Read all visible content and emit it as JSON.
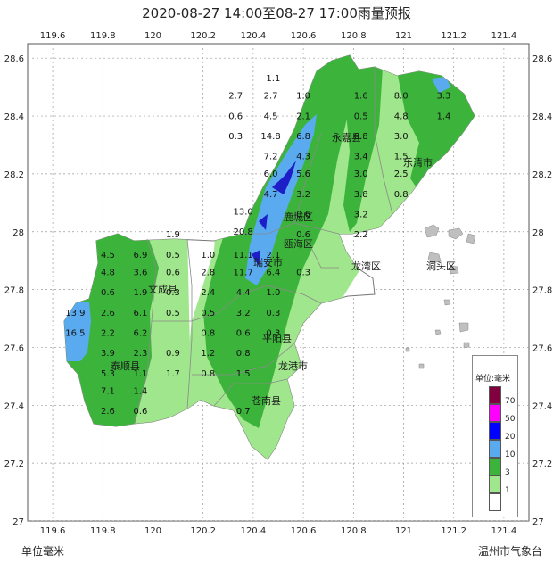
{
  "title": "2020-08-27 14:00至08-27 17:00雨量预报",
  "footer": {
    "left": "单位毫米",
    "right": "温州市气象台"
  },
  "lon_ticks": [
    "119.6",
    "119.8",
    "120",
    "120.2",
    "120.4",
    "120.6",
    "120.8",
    "121",
    "121.2",
    "121.4"
  ],
  "lat_ticks": [
    "28.6",
    "28.4",
    "28.2",
    "28",
    "27.8",
    "27.6",
    "27.4",
    "27.2",
    "27"
  ],
  "legend": {
    "title": "单位:毫米",
    "items": [
      {
        "label": "70",
        "color": "#800040"
      },
      {
        "label": "50",
        "color": "#ff00ff"
      },
      {
        "label": "20",
        "color": "#0000ff"
      },
      {
        "label": "10",
        "color": "#5aaaf0"
      },
      {
        "label": "3",
        "color": "#3cb43c"
      },
      {
        "label": "1",
        "color": "#a0e68c"
      },
      {
        "label": "",
        "color": "#ffffff"
      }
    ]
  },
  "places": [
    "永嘉县",
    "乐清市",
    "鹿城区",
    "瓯海区",
    "龙湾区",
    "洞头区",
    "文成县",
    "瑞安市",
    "平阳县",
    "龙港市",
    "苍南县",
    "泰顺县"
  ],
  "station_values": [
    {
      "lon": 120.48,
      "lat": 28.52,
      "v": "1.1"
    },
    {
      "lon": 120.33,
      "lat": 28.46,
      "v": "2.7"
    },
    {
      "lon": 120.47,
      "lat": 28.46,
      "v": "2.7"
    },
    {
      "lon": 120.6,
      "lat": 28.46,
      "v": "1.0"
    },
    {
      "lon": 120.83,
      "lat": 28.46,
      "v": "1.6"
    },
    {
      "lon": 120.99,
      "lat": 28.46,
      "v": "8.0"
    },
    {
      "lon": 121.16,
      "lat": 28.46,
      "v": "3.3"
    },
    {
      "lon": 120.33,
      "lat": 28.39,
      "v": "0.6"
    },
    {
      "lon": 120.47,
      "lat": 28.39,
      "v": "4.5"
    },
    {
      "lon": 120.6,
      "lat": 28.39,
      "v": "2.1"
    },
    {
      "lon": 120.83,
      "lat": 28.39,
      "v": "0.5"
    },
    {
      "lon": 120.99,
      "lat": 28.39,
      "v": "4.8"
    },
    {
      "lon": 121.16,
      "lat": 28.39,
      "v": "1.4"
    },
    {
      "lon": 120.33,
      "lat": 28.32,
      "v": "0.3"
    },
    {
      "lon": 120.47,
      "lat": 28.32,
      "v": "14.8"
    },
    {
      "lon": 120.6,
      "lat": 28.32,
      "v": "6.8"
    },
    {
      "lon": 120.83,
      "lat": 28.32,
      "v": "0.8"
    },
    {
      "lon": 120.99,
      "lat": 28.32,
      "v": "3.0"
    },
    {
      "lon": 120.47,
      "lat": 28.25,
      "v": "7.2"
    },
    {
      "lon": 120.6,
      "lat": 28.25,
      "v": "4.3"
    },
    {
      "lon": 120.83,
      "lat": 28.25,
      "v": "3.4"
    },
    {
      "lon": 120.99,
      "lat": 28.25,
      "v": "1.5"
    },
    {
      "lon": 120.47,
      "lat": 28.19,
      "v": "6.0"
    },
    {
      "lon": 120.6,
      "lat": 28.19,
      "v": "5.6"
    },
    {
      "lon": 120.83,
      "lat": 28.19,
      "v": "3.0"
    },
    {
      "lon": 120.99,
      "lat": 28.19,
      "v": "2.5"
    },
    {
      "lon": 120.47,
      "lat": 28.12,
      "v": "4.7"
    },
    {
      "lon": 120.6,
      "lat": 28.12,
      "v": "3.2"
    },
    {
      "lon": 120.83,
      "lat": 28.12,
      "v": "3.8"
    },
    {
      "lon": 120.99,
      "lat": 28.12,
      "v": "0.8"
    },
    {
      "lon": 120.36,
      "lat": 28.06,
      "v": "13.0"
    },
    {
      "lon": 120.6,
      "lat": 28.05,
      "v": "0.6"
    },
    {
      "lon": 120.83,
      "lat": 28.05,
      "v": "3.2"
    },
    {
      "lon": 120.36,
      "lat": 27.99,
      "v": "20.8"
    },
    {
      "lon": 120.6,
      "lat": 27.98,
      "v": "0.6"
    },
    {
      "lon": 120.83,
      "lat": 27.98,
      "v": "2.2"
    },
    {
      "lon": 120.08,
      "lat": 27.98,
      "v": "1.9"
    },
    {
      "lon": 119.82,
      "lat": 27.91,
      "v": "4.5"
    },
    {
      "lon": 119.95,
      "lat": 27.91,
      "v": "6.9"
    },
    {
      "lon": 120.08,
      "lat": 27.91,
      "v": "0.5"
    },
    {
      "lon": 120.22,
      "lat": 27.91,
      "v": "1.0"
    },
    {
      "lon": 120.36,
      "lat": 27.91,
      "v": "11.1"
    },
    {
      "lon": 120.48,
      "lat": 27.91,
      "v": "2.1"
    },
    {
      "lon": 119.82,
      "lat": 27.85,
      "v": "4.8"
    },
    {
      "lon": 119.95,
      "lat": 27.85,
      "v": "3.6"
    },
    {
      "lon": 120.08,
      "lat": 27.85,
      "v": "0.6"
    },
    {
      "lon": 120.22,
      "lat": 27.85,
      "v": "2.8"
    },
    {
      "lon": 120.36,
      "lat": 27.85,
      "v": "11.7"
    },
    {
      "lon": 120.48,
      "lat": 27.85,
      "v": "6.4"
    },
    {
      "lon": 120.6,
      "lat": 27.85,
      "v": "0.3"
    },
    {
      "lon": 119.82,
      "lat": 27.78,
      "v": "0.6"
    },
    {
      "lon": 119.95,
      "lat": 27.78,
      "v": "1.9"
    },
    {
      "lon": 120.08,
      "lat": 27.78,
      "v": "0.3"
    },
    {
      "lon": 120.22,
      "lat": 27.78,
      "v": "2.4"
    },
    {
      "lon": 120.36,
      "lat": 27.78,
      "v": "4.4"
    },
    {
      "lon": 120.48,
      "lat": 27.78,
      "v": "1.0"
    },
    {
      "lon": 119.69,
      "lat": 27.71,
      "v": "13.9"
    },
    {
      "lon": 119.82,
      "lat": 27.71,
      "v": "2.6"
    },
    {
      "lon": 119.95,
      "lat": 27.71,
      "v": "6.1"
    },
    {
      "lon": 120.08,
      "lat": 27.71,
      "v": "0.5"
    },
    {
      "lon": 120.22,
      "lat": 27.71,
      "v": "0.5"
    },
    {
      "lon": 120.36,
      "lat": 27.71,
      "v": "3.2"
    },
    {
      "lon": 120.48,
      "lat": 27.71,
      "v": "0.3"
    },
    {
      "lon": 119.69,
      "lat": 27.64,
      "v": "16.5"
    },
    {
      "lon": 119.82,
      "lat": 27.64,
      "v": "2.2"
    },
    {
      "lon": 119.95,
      "lat": 27.64,
      "v": "6.2"
    },
    {
      "lon": 120.22,
      "lat": 27.64,
      "v": "0.8"
    },
    {
      "lon": 120.36,
      "lat": 27.64,
      "v": "0.6"
    },
    {
      "lon": 120.48,
      "lat": 27.64,
      "v": "0.3"
    },
    {
      "lon": 119.82,
      "lat": 27.57,
      "v": "3.9"
    },
    {
      "lon": 119.95,
      "lat": 27.57,
      "v": "2.3"
    },
    {
      "lon": 120.08,
      "lat": 27.57,
      "v": "0.9"
    },
    {
      "lon": 120.22,
      "lat": 27.57,
      "v": "1.2"
    },
    {
      "lon": 120.36,
      "lat": 27.57,
      "v": "0.8"
    },
    {
      "lon": 119.82,
      "lat": 27.5,
      "v": "5.3"
    },
    {
      "lon": 119.95,
      "lat": 27.5,
      "v": "1.1"
    },
    {
      "lon": 120.08,
      "lat": 27.5,
      "v": "1.7"
    },
    {
      "lon": 120.22,
      "lat": 27.5,
      "v": "0.8"
    },
    {
      "lon": 120.36,
      "lat": 27.5,
      "v": "1.5"
    },
    {
      "lon": 119.82,
      "lat": 27.44,
      "v": "7.1"
    },
    {
      "lon": 119.95,
      "lat": 27.44,
      "v": "1.4"
    },
    {
      "lon": 120.36,
      "lat": 27.37,
      "v": "0.7"
    },
    {
      "lon": 119.82,
      "lat": 27.37,
      "v": "2.6"
    },
    {
      "lon": 119.95,
      "lat": 27.37,
      "v": "0.6"
    }
  ]
}
